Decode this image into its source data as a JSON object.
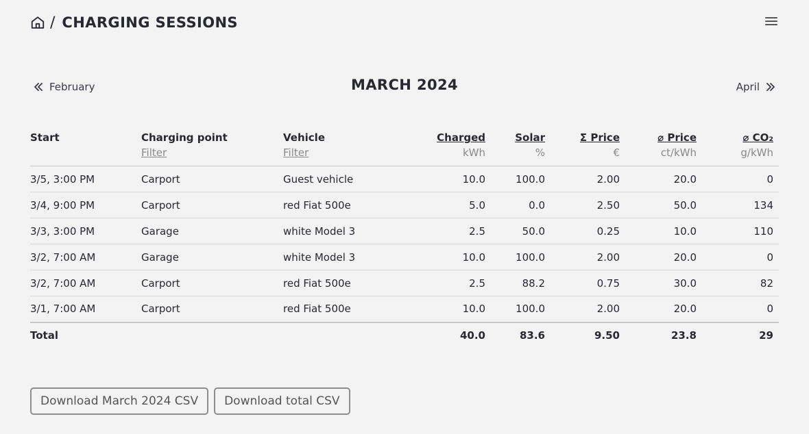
{
  "header": {
    "separator": "/",
    "title": "CHARGING SESSIONS"
  },
  "month_nav": {
    "prev_label": "February",
    "current_title": "MARCH 2024",
    "next_label": "April"
  },
  "table": {
    "columns": {
      "start": "Start",
      "charging_point": "Charging point",
      "charging_point_filter": "Filter",
      "vehicle": "Vehicle",
      "vehicle_filter": "Filter",
      "charged": "Charged",
      "charged_unit": "kWh",
      "solar": "Solar",
      "solar_unit": "%",
      "price": "Σ Price",
      "price_unit": "€",
      "avg_price": "⌀ Price",
      "avg_price_unit": "ct/kWh",
      "co2": "⌀ CO₂",
      "co2_unit": "g/kWh"
    },
    "rows": [
      {
        "start": "3/5, 3:00 PM",
        "charging_point": "Carport",
        "vehicle": "Guest vehicle",
        "charged": "10.0",
        "solar": "100.0",
        "price": "2.00",
        "avg_price": "20.0",
        "co2": "0"
      },
      {
        "start": "3/4, 9:00 PM",
        "charging_point": "Carport",
        "vehicle": "red Fiat 500e",
        "charged": "5.0",
        "solar": "0.0",
        "price": "2.50",
        "avg_price": "50.0",
        "co2": "134"
      },
      {
        "start": "3/3, 3:00 PM",
        "charging_point": "Garage",
        "vehicle": "white Model 3",
        "charged": "2.5",
        "solar": "50.0",
        "price": "0.25",
        "avg_price": "10.0",
        "co2": "110"
      },
      {
        "start": "3/2, 7:00 AM",
        "charging_point": "Garage",
        "vehicle": "white Model 3",
        "charged": "10.0",
        "solar": "100.0",
        "price": "2.00",
        "avg_price": "20.0",
        "co2": "0"
      },
      {
        "start": "3/2, 7:00 AM",
        "charging_point": "Carport",
        "vehicle": "red Fiat 500e",
        "charged": "2.5",
        "solar": "88.2",
        "price": "0.75",
        "avg_price": "30.0",
        "co2": "82"
      },
      {
        "start": "3/1, 7:00 AM",
        "charging_point": "Carport",
        "vehicle": "red Fiat 500e",
        "charged": "10.0",
        "solar": "100.0",
        "price": "2.00",
        "avg_price": "20.0",
        "co2": "0"
      }
    ],
    "total": {
      "label": "Total",
      "charged": "40.0",
      "solar": "83.6",
      "price": "9.50",
      "avg_price": "23.8",
      "co2": "29"
    }
  },
  "buttons": {
    "download_month": "Download March 2024 CSV",
    "download_total": "Download total CSV"
  },
  "colors": {
    "background": "#f3f3f3",
    "text": "#28282f",
    "muted": "#8a8a8a",
    "border": "#8e8e8e"
  }
}
